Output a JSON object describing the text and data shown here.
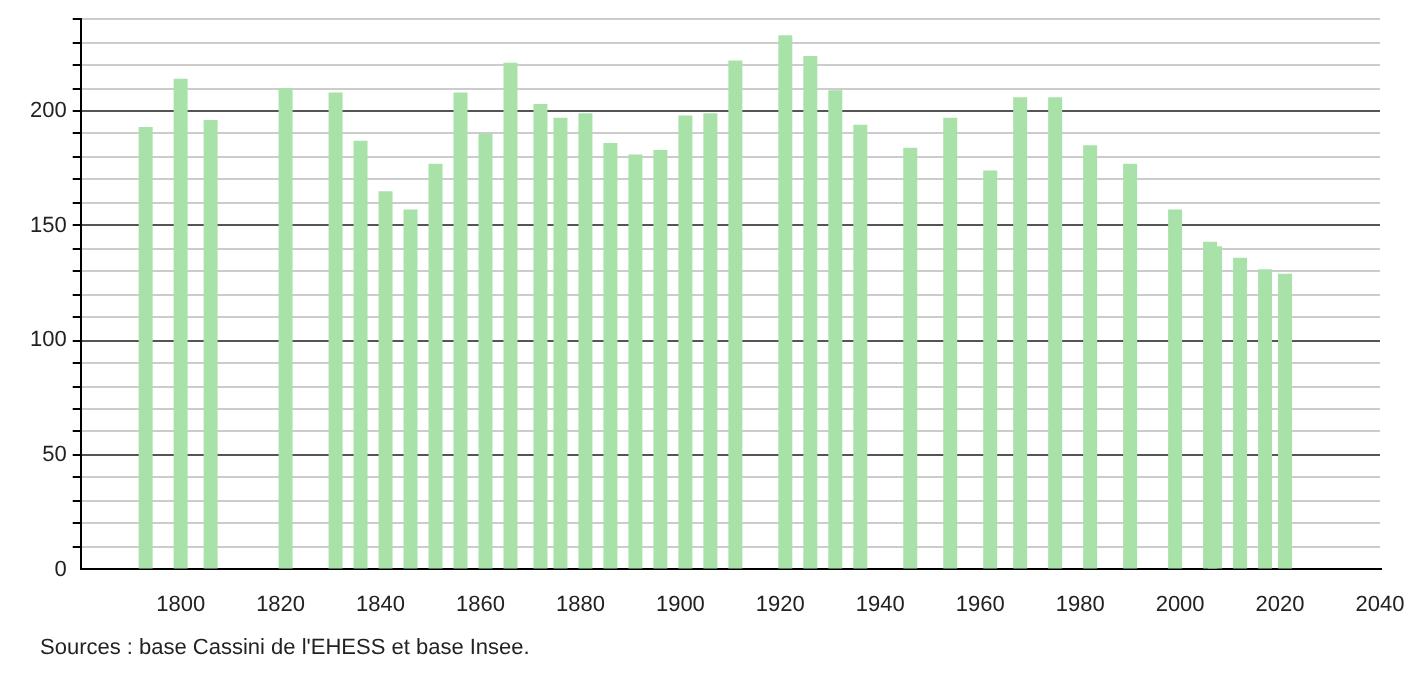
{
  "chart_data": {
    "type": "bar",
    "color": "#a8e2a8",
    "x": [
      1793,
      1800,
      1806,
      1821,
      1831,
      1836,
      1841,
      1846,
      1851,
      1856,
      1861,
      1866,
      1872,
      1876,
      1881,
      1886,
      1891,
      1896,
      1901,
      1906,
      1911,
      1921,
      1926,
      1931,
      1936,
      1946,
      1954,
      1962,
      1968,
      1975,
      1982,
      1990,
      1999,
      2006,
      2007,
      2012,
      2017,
      2021
    ],
    "values": [
      193,
      214,
      196,
      210,
      208,
      187,
      165,
      157,
      177,
      208,
      190,
      221,
      203,
      197,
      199,
      186,
      181,
      183,
      198,
      199,
      222,
      233,
      224,
      209,
      194,
      184,
      197,
      174,
      206,
      206,
      185,
      177,
      157,
      143,
      141,
      136,
      131,
      129
    ],
    "xlim": [
      1780,
      2040
    ],
    "xticks": [
      1800,
      1820,
      1840,
      1860,
      1880,
      1900,
      1920,
      1940,
      1960,
      1980,
      2000,
      2020,
      2040
    ],
    "ylim": [
      0,
      240
    ],
    "yticks": [
      0,
      {
        "value": 10,
        "label": null
      },
      {
        "value": 20,
        "label": null
      },
      {
        "value": 30,
        "label": null
      },
      {
        "value": 40,
        "label": null
      },
      50,
      {
        "value": 60,
        "label": null
      },
      {
        "value": 70,
        "label": null
      },
      {
        "value": 80,
        "label": null
      },
      {
        "value": 90,
        "label": null
      },
      100,
      {
        "value": 110,
        "label": null
      },
      {
        "value": 120,
        "label": null
      },
      {
        "value": 130,
        "label": null
      },
      {
        "value": 140,
        "label": null
      },
      150,
      {
        "value": 160,
        "label": null
      },
      {
        "value": 170,
        "label": null
      },
      {
        "value": 180,
        "label": null
      },
      {
        "value": 190,
        "label": null
      },
      200,
      {
        "value": 210,
        "label": null
      },
      {
        "value": 220,
        "label": null
      },
      {
        "value": 230,
        "label": null
      },
      {
        "value": 240,
        "label": null
      }
    ],
    "grid": "y",
    "annotations": [
      "Sources : base Cassini de l'EHESS et base Insee."
    ]
  }
}
